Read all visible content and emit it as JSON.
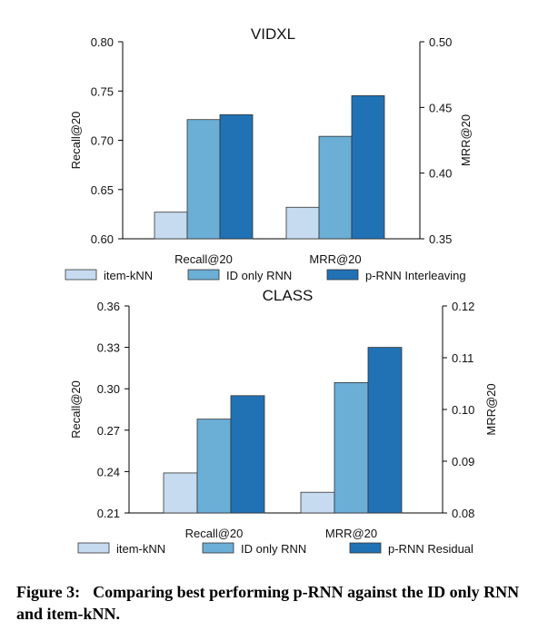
{
  "colors": {
    "item_knn": "#c6dbef",
    "id_only_rnn": "#6baed6",
    "prnn": "#2171b5",
    "axis": "#000000"
  },
  "chart_data": [
    {
      "type": "bar",
      "title": "VIDXL",
      "categories": [
        "Recall@20",
        "MRR@20"
      ],
      "ylabel": "Recall@20",
      "ylabel_right": "MRR@20",
      "ylim": [
        0.6,
        0.8
      ],
      "yticks": [
        "0.60",
        "0.65",
        "0.70",
        "0.75",
        "0.80"
      ],
      "ylim_right": [
        0.35,
        0.5
      ],
      "yticks_right": [
        "0.35",
        "0.40",
        "0.45",
        "0.50"
      ],
      "series": [
        {
          "name": "item-kNN",
          "values": [
            0.627,
            0.374
          ]
        },
        {
          "name": "ID only RNN",
          "values": [
            0.721,
            0.428
          ]
        },
        {
          "name": "p-RNN Interleaving",
          "values": [
            0.726,
            0.459
          ]
        }
      ],
      "value_axis": [
        "left",
        "right"
      ],
      "legend": "bottom"
    },
    {
      "type": "bar",
      "title": "CLASS",
      "categories": [
        "Recall@20",
        "MRR@20"
      ],
      "ylabel": "Recall@20",
      "ylabel_right": "MRR@20",
      "ylim": [
        0.21,
        0.36
      ],
      "yticks": [
        "0.21",
        "0.24",
        "0.27",
        "0.30",
        "0.33",
        "0.36"
      ],
      "ylim_right": [
        0.08,
        0.12
      ],
      "yticks_right": [
        "0.08",
        "0.09",
        "0.10",
        "0.11",
        "0.12"
      ],
      "series": [
        {
          "name": "item-kNN",
          "values": [
            0.239,
            0.084
          ]
        },
        {
          "name": "ID only RNN",
          "values": [
            0.278,
            0.1052
          ]
        },
        {
          "name": "p-RNN Residual",
          "values": [
            0.295,
            0.112
          ]
        }
      ],
      "value_axis": [
        "left",
        "right"
      ],
      "legend": "bottom"
    }
  ],
  "caption": {
    "label": "Figure 3:",
    "text": "Comparing best performing p-RNN against the ID only RNN and item-kNN."
  }
}
